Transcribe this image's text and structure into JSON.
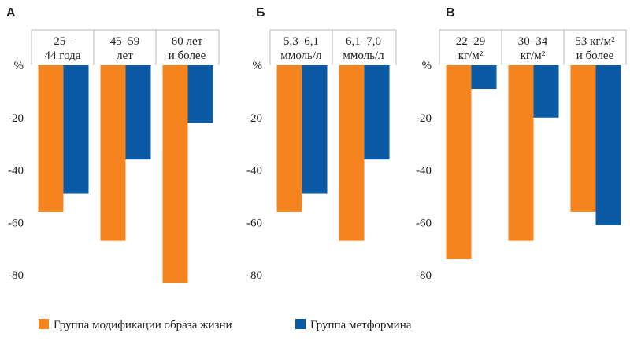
{
  "colors": {
    "lifestyle": "#f5841f",
    "metformin": "#0a5aa5",
    "frame": "#b7b9bb"
  },
  "legend": {
    "lifestyle_label": "Группа модификации образа жизни",
    "metformin_label": "Группа метформина"
  },
  "chart_data": [
    {
      "type": "bar",
      "title": "А",
      "ylim": [
        -85,
        0
      ],
      "yticks": [
        0,
        -20,
        -40,
        -60,
        -80
      ],
      "ytick_labels": [
        "%",
        "-20",
        "-40",
        "-60",
        "-80"
      ],
      "categories": [
        [
          "25–",
          "44 года"
        ],
        [
          "45–59",
          "лет"
        ],
        [
          "60 лет",
          "и более"
        ]
      ],
      "series": [
        {
          "name": "Группа модификации образа жизни",
          "values": [
            -56,
            -67,
            -83
          ]
        },
        {
          "name": "Группа метформина",
          "values": [
            -49,
            -36,
            -22
          ]
        }
      ]
    },
    {
      "type": "bar",
      "title": "Б",
      "ylim": [
        -85,
        0
      ],
      "yticks": [
        0,
        -20,
        -40,
        -60,
        -80
      ],
      "ytick_labels": [
        "%",
        "-20",
        "-40",
        "-60",
        "-80"
      ],
      "categories": [
        [
          "5,3–6,1",
          "ммоль/л"
        ],
        [
          "6,1–7,0",
          "ммоль/л"
        ]
      ],
      "series": [
        {
          "name": "Группа модификации образа жизни",
          "values": [
            -56,
            -67
          ]
        },
        {
          "name": "Группа метформина",
          "values": [
            -49,
            -36
          ]
        }
      ]
    },
    {
      "type": "bar",
      "title": "В",
      "ylim": [
        -85,
        0
      ],
      "yticks": [
        0,
        -20,
        -40,
        -60,
        -80
      ],
      "ytick_labels": [
        "%",
        "-20",
        "-40",
        "-60",
        "-80"
      ],
      "categories": [
        [
          "22–29",
          "кг/м²"
        ],
        [
          "30–34",
          "кг/м²"
        ],
        [
          "53 кг/м²",
          "и более"
        ]
      ],
      "series": [
        {
          "name": "Группа модификации образа жизни",
          "values": [
            -74,
            -67,
            -56
          ]
        },
        {
          "name": "Группа метформина",
          "values": [
            -9,
            -20,
            -61
          ]
        }
      ]
    }
  ]
}
